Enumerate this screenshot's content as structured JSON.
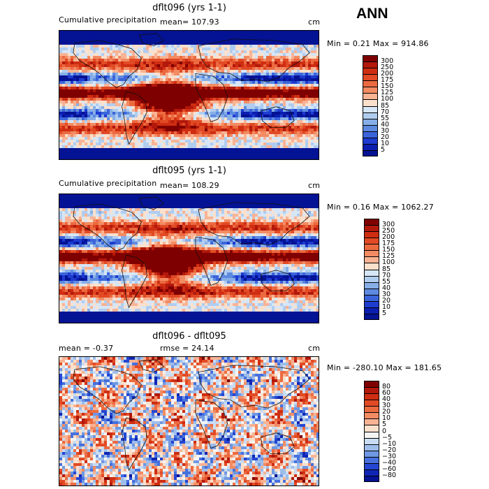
{
  "season": "ANN",
  "panels": [
    {
      "title": "dflt096 (yrs 1-1)",
      "left_label": "Cumulative precipitation",
      "mid_label": "mean=  107.93",
      "units": "cm",
      "range_label": "Min =    0.21  Max =  914.86",
      "palette": "precip",
      "colorbar": {
        "levels": [
          "300",
          "250",
          "200",
          "175",
          "150",
          "125",
          "100",
          "85",
          "70",
          "55",
          "40",
          "30",
          "20",
          "10",
          "5"
        ],
        "colors": [
          "#7f0000",
          "#b2180b",
          "#cf2d12",
          "#e14a24",
          "#ec6a40",
          "#f38b63",
          "#f8b394",
          "#fbe0cc",
          "#d6e6f7",
          "#b0cdf0",
          "#87aee6",
          "#5d8ae0",
          "#3b64db",
          "#1e3cd0",
          "#0b1eb0",
          "#041294"
        ]
      }
    },
    {
      "title": "dflt095 (yrs 1-1)",
      "left_label": "Cumulative precipitation",
      "mid_label": "mean=  108.29",
      "units": "cm",
      "range_label": "Min =    0.16  Max =  1062.27",
      "palette": "precip",
      "colorbar": {
        "levels": [
          "300",
          "250",
          "200",
          "175",
          "150",
          "125",
          "100",
          "85",
          "70",
          "55",
          "40",
          "30",
          "20",
          "10",
          "5"
        ],
        "colors": [
          "#7f0000",
          "#b2180b",
          "#cf2d12",
          "#e14a24",
          "#ec6a40",
          "#f38b63",
          "#f8b394",
          "#fbe0cc",
          "#d6e6f7",
          "#b0cdf0",
          "#87aee6",
          "#5d8ae0",
          "#3b64db",
          "#1e3cd0",
          "#0b1eb0",
          "#041294"
        ]
      }
    },
    {
      "title": "dflt096 - dflt095",
      "left_label": "mean =   -0.37",
      "mid_label": "rmse =   24.14",
      "units": "cm",
      "range_label": "Min = -280.10  Max =  181.65",
      "palette": "diff",
      "colorbar": {
        "levels": [
          "80",
          "60",
          "40",
          "30",
          "20",
          "10",
          "5",
          "0",
          "−5",
          "−10",
          "−20",
          "−30",
          "−40",
          "−60",
          "−80"
        ],
        "colors": [
          "#7f0000",
          "#b2180b",
          "#cf2d12",
          "#e14a24",
          "#ec6a40",
          "#f38b63",
          "#f8b394",
          "#fbe0cc",
          "#f4f4f4",
          "#c9dcf3",
          "#9dbdeb",
          "#6f97e2",
          "#4670dd",
          "#2446d2",
          "#0f26b5",
          "#041294"
        ]
      }
    }
  ],
  "chart_data": [
    {
      "type": "heatmap",
      "title": "dflt096 (yrs 1-1)",
      "subtitle": "Cumulative precipitation",
      "units": "cm",
      "mean": 107.93,
      "min": 0.21,
      "max": 914.86,
      "levels": [
        5,
        10,
        20,
        30,
        40,
        55,
        70,
        85,
        100,
        125,
        150,
        175,
        200,
        250,
        300
      ]
    },
    {
      "type": "heatmap",
      "title": "dflt095 (yrs 1-1)",
      "subtitle": "Cumulative precipitation",
      "units": "cm",
      "mean": 108.29,
      "min": 0.16,
      "max": 1062.27,
      "levels": [
        5,
        10,
        20,
        30,
        40,
        55,
        70,
        85,
        100,
        125,
        150,
        175,
        200,
        250,
        300
      ]
    },
    {
      "type": "heatmap",
      "title": "dflt096 - dflt095",
      "units": "cm",
      "mean": -0.37,
      "rmse": 24.14,
      "min": -280.1,
      "max": 181.65,
      "levels": [
        -80,
        -60,
        -40,
        -30,
        -20,
        -10,
        -5,
        0,
        5,
        10,
        20,
        30,
        40,
        60,
        80
      ]
    }
  ]
}
